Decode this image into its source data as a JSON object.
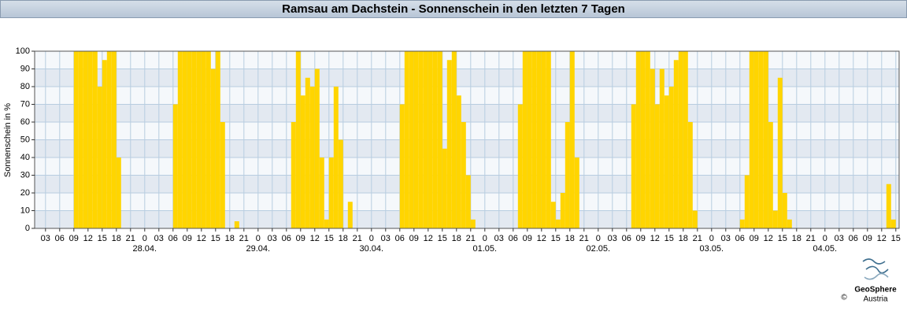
{
  "chart_data": {
    "type": "bar",
    "title": "Ramsau am Dachstein - Sonnenschein in den letzten 7 Tagen",
    "y_label": "Sonnenschein in %",
    "color": "#ffd500",
    "grid": true,
    "x": [
      0,
      1,
      2,
      3,
      4,
      5,
      6,
      7,
      8,
      9,
      10,
      11,
      12,
      13,
      14,
      15,
      16,
      17,
      18,
      19,
      20,
      21,
      22,
      23,
      24,
      25,
      26,
      27,
      28,
      29,
      30,
      31,
      32,
      33,
      34,
      35,
      36,
      37,
      38,
      39,
      40,
      41,
      42,
      43,
      44,
      45,
      46,
      47,
      48,
      49,
      50,
      51,
      52,
      53,
      54,
      55,
      56,
      57,
      58,
      59,
      60,
      61,
      62,
      63,
      64,
      65,
      66,
      67,
      68,
      69,
      70,
      71,
      72,
      73,
      74,
      75,
      76,
      77,
      78,
      79,
      80,
      81,
      82,
      83,
      84,
      85,
      86,
      87,
      88,
      89,
      90,
      91,
      92,
      93,
      94,
      95,
      96,
      97,
      98,
      99,
      100,
      101,
      102,
      103,
      104,
      105,
      106,
      107,
      108,
      109,
      110,
      111,
      112,
      113,
      114,
      115,
      116,
      117,
      118,
      119,
      120,
      121,
      122,
      123,
      124,
      125,
      126,
      127,
      128,
      129,
      130,
      131,
      132,
      133,
      134,
      135,
      136,
      137,
      138,
      139,
      140,
      141,
      142,
      143,
      144,
      145,
      146,
      147,
      148,
      149,
      150,
      151,
      152,
      153,
      154,
      155,
      156,
      157,
      158,
      159,
      160,
      161,
      162,
      163,
      164,
      165,
      166,
      167,
      168,
      169,
      170,
      171,
      172,
      173,
      174,
      175,
      176,
      177,
      178,
      179,
      180,
      181,
      182,
      183
    ],
    "values": [
      0,
      0,
      0,
      0,
      0,
      0,
      0,
      0,
      0,
      100,
      100,
      100,
      100,
      100,
      80,
      95,
      100,
      100,
      40,
      0,
      0,
      0,
      0,
      0,
      0,
      0,
      0,
      0,
      0,
      0,
      70,
      100,
      100,
      100,
      100,
      100,
      100,
      100,
      90,
      100,
      60,
      0,
      0,
      4,
      0,
      0,
      0,
      0,
      0,
      0,
      0,
      0,
      0,
      0,
      0,
      60,
      100,
      75,
      85,
      80,
      90,
      40,
      5,
      40,
      80,
      50,
      0,
      15,
      0,
      0,
      0,
      0,
      0,
      0,
      0,
      0,
      0,
      0,
      70,
      100,
      100,
      100,
      100,
      100,
      100,
      100,
      100,
      45,
      95,
      100,
      75,
      60,
      30,
      5,
      0,
      0,
      0,
      0,
      0,
      0,
      0,
      0,
      0,
      70,
      100,
      100,
      100,
      100,
      100,
      100,
      15,
      5,
      20,
      60,
      100,
      40,
      0,
      0,
      0,
      0,
      0,
      0,
      0,
      0,
      0,
      0,
      0,
      70,
      100,
      100,
      100,
      90,
      70,
      90,
      75,
      80,
      95,
      100,
      100,
      60,
      10,
      0,
      0,
      0,
      0,
      0,
      0,
      0,
      0,
      0,
      5,
      30,
      100,
      100,
      100,
      100,
      60,
      10,
      85,
      20,
      5,
      0,
      0,
      0,
      0,
      0,
      0,
      0,
      0,
      0,
      0,
      0,
      0,
      0,
      0,
      0,
      0,
      0,
      0,
      0,
      0,
      25,
      5,
      0
    ],
    "xlim": [
      0.7,
      183.7
    ],
    "ylim": [
      0,
      100
    ],
    "yticks": [
      0,
      10,
      20,
      30,
      40,
      50,
      60,
      70,
      80,
      90,
      100
    ],
    "xticks": [
      {
        "value": 3,
        "label": "03"
      },
      {
        "value": 6,
        "label": "06"
      },
      {
        "value": 9,
        "label": "09"
      },
      {
        "value": 12,
        "label": "12"
      },
      {
        "value": 15,
        "label": "15"
      },
      {
        "value": 18,
        "label": "18"
      },
      {
        "value": 21,
        "label": "21"
      },
      {
        "value": 24,
        "label": "0"
      },
      {
        "value": 27,
        "label": "03"
      },
      {
        "value": 30,
        "label": "06"
      },
      {
        "value": 33,
        "label": "09"
      },
      {
        "value": 36,
        "label": "12"
      },
      {
        "value": 39,
        "label": "15"
      },
      {
        "value": 42,
        "label": "18"
      },
      {
        "value": 45,
        "label": "21"
      },
      {
        "value": 48,
        "label": "0"
      },
      {
        "value": 51,
        "label": "03"
      },
      {
        "value": 54,
        "label": "06"
      },
      {
        "value": 57,
        "label": "09"
      },
      {
        "value": 60,
        "label": "12"
      },
      {
        "value": 63,
        "label": "15"
      },
      {
        "value": 66,
        "label": "18"
      },
      {
        "value": 69,
        "label": "21"
      },
      {
        "value": 72,
        "label": "0"
      },
      {
        "value": 75,
        "label": "03"
      },
      {
        "value": 78,
        "label": "06"
      },
      {
        "value": 81,
        "label": "09"
      },
      {
        "value": 84,
        "label": "12"
      },
      {
        "value": 87,
        "label": "15"
      },
      {
        "value": 90,
        "label": "18"
      },
      {
        "value": 93,
        "label": "21"
      },
      {
        "value": 96,
        "label": "0"
      },
      {
        "value": 99,
        "label": "03"
      },
      {
        "value": 102,
        "label": "06"
      },
      {
        "value": 105,
        "label": "09"
      },
      {
        "value": 108,
        "label": "12"
      },
      {
        "value": 111,
        "label": "15"
      },
      {
        "value": 114,
        "label": "18"
      },
      {
        "value": 117,
        "label": "21"
      },
      {
        "value": 120,
        "label": "0"
      },
      {
        "value": 123,
        "label": "03"
      },
      {
        "value": 126,
        "label": "06"
      },
      {
        "value": 129,
        "label": "09"
      },
      {
        "value": 132,
        "label": "12"
      },
      {
        "value": 135,
        "label": "15"
      },
      {
        "value": 138,
        "label": "18"
      },
      {
        "value": 141,
        "label": "21"
      },
      {
        "value": 144,
        "label": "0"
      },
      {
        "value": 147,
        "label": "03"
      },
      {
        "value": 150,
        "label": "06"
      },
      {
        "value": 153,
        "label": "09"
      },
      {
        "value": 156,
        "label": "12"
      },
      {
        "value": 159,
        "label": "15"
      },
      {
        "value": 162,
        "label": "18"
      },
      {
        "value": 165,
        "label": "21"
      },
      {
        "value": 168,
        "label": "0"
      },
      {
        "value": 171,
        "label": "03"
      },
      {
        "value": 174,
        "label": "06"
      },
      {
        "value": 177,
        "label": "09"
      },
      {
        "value": 180,
        "label": "12"
      },
      {
        "value": 183,
        "label": "15"
      }
    ],
    "date_labels": [
      {
        "value": 24,
        "label": "28.04."
      },
      {
        "value": 48,
        "label": "29.04."
      },
      {
        "value": 72,
        "label": "30.04."
      },
      {
        "value": 96,
        "label": "01.05."
      },
      {
        "value": 120,
        "label": "02.05."
      },
      {
        "value": 144,
        "label": "03.05."
      },
      {
        "value": 168,
        "label": "04.05."
      }
    ]
  },
  "footer": {
    "brand": "GeoSphere",
    "country": "Austria",
    "copyright": "©"
  }
}
